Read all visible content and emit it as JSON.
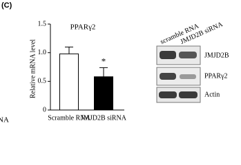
{
  "panel_label": "(C)",
  "edge_text": "NA",
  "chart_data": {
    "type": "bar",
    "title": "PPARγ2",
    "y_label": "Relative mRNA level",
    "categories": [
      "Scramble RNA",
      "JMJD2B siRNA"
    ],
    "values": [
      0.98,
      0.58
    ],
    "errors": [
      0.12,
      0.16
    ],
    "colors": [
      "#ffffff",
      "#000000"
    ],
    "annotations": [
      {
        "category": 1,
        "text": "*"
      }
    ],
    "ylim": [
      0,
      1.5
    ],
    "yticks": [
      0,
      0.5,
      {
        "value": 1,
        "label": "1.0"
      },
      1.5
    ],
    "grid": false
  },
  "blot": {
    "columns": [
      "scramble RNA",
      "JMJD2B siRNA"
    ],
    "rows": [
      "JMJD2B",
      "PPARγ2",
      "Actin"
    ]
  }
}
